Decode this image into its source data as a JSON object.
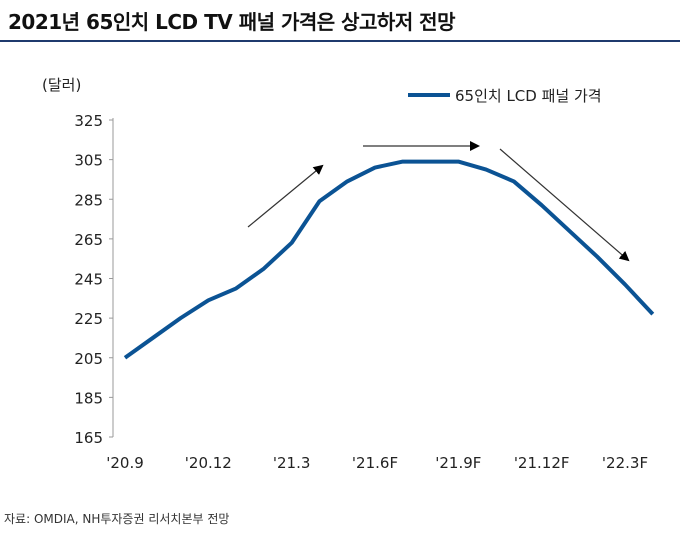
{
  "title": "2021년 65인치 LCD TV 패널 가격은 상고하저 전망",
  "source": "자료: OMDIA, NH투자증권 리서치본부 전망",
  "chart_data": {
    "type": "line",
    "title": "2021년 65인치 LCD TV 패널 가격은 상고하저 전망",
    "ylabel": "(달러)",
    "ylim": [
      165,
      325
    ],
    "yticks": [
      165,
      185,
      205,
      225,
      245,
      265,
      285,
      305,
      325
    ],
    "xtick_labels": [
      "'20.9",
      "'20.12",
      "'21.3",
      "'21.6F",
      "'21.9F",
      "'21.12F",
      "'22.3F"
    ],
    "x": [
      "'20.9",
      "'20.10",
      "'20.11",
      "'20.12",
      "'21.1",
      "'21.2",
      "'21.3",
      "'21.4",
      "'21.5",
      "'21.6F",
      "'21.7F",
      "'21.8F",
      "'21.9F",
      "'21.10F",
      "'21.11F",
      "'21.12F",
      "'22.1F",
      "'22.2F",
      "'22.3F",
      "'22.4F"
    ],
    "series": [
      {
        "name": "65인치 LCD 패널 가격",
        "color": "#0b5394",
        "values": [
          205,
          215,
          225,
          234,
          240,
          250,
          263,
          284,
          294,
          301,
          304,
          304,
          304,
          300,
          294,
          282,
          269,
          256,
          242,
          227
        ]
      }
    ],
    "legend": "top-right",
    "grid": false
  }
}
